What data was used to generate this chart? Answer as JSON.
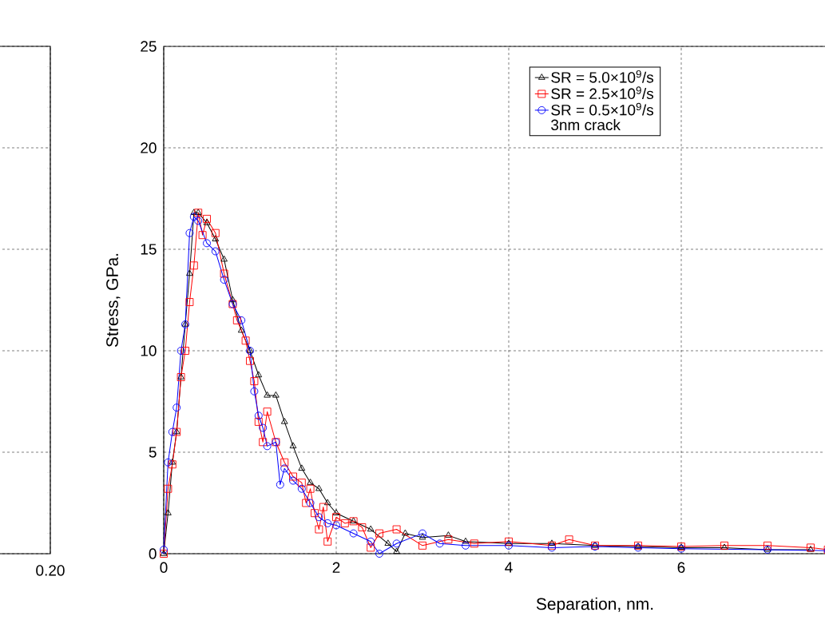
{
  "chart_data": [
    {
      "type": "other",
      "annotations": [
        "0.20"
      ]
    },
    {
      "type": "line",
      "xlabel": "Separation, nm.",
      "ylabel": "Stress, GPa.",
      "legend_title": "3nm crack",
      "xlim": [
        0,
        10
      ],
      "ylim": [
        0,
        25
      ],
      "xticks": [
        0,
        2,
        4,
        6
      ],
      "yticks": [
        0,
        5,
        10,
        15,
        20,
        25
      ],
      "grid": true,
      "legend": "top",
      "line_style": "solid",
      "series": [
        {
          "name": "SR = 5.0×10$^{9}$/s",
          "color": "#000000",
          "marker": "triangle",
          "x": [
            0,
            0.05,
            0.1,
            0.15,
            0.2,
            0.25,
            0.3,
            0.35,
            0.4,
            0.5,
            0.6,
            0.7,
            0.8,
            0.9,
            1.0,
            1.1,
            1.2,
            1.3,
            1.4,
            1.5,
            1.6,
            1.7,
            1.8,
            1.9,
            2.0,
            2.2,
            2.4,
            2.6,
            2.7,
            2.8,
            3.0,
            3.3,
            3.5,
            4.0,
            4.5,
            5.0,
            5.5,
            6.0,
            6.5,
            7.0,
            7.5
          ],
          "values": [
            0,
            2,
            4.5,
            6,
            8.7,
            11.3,
            13.8,
            16.8,
            16.8,
            16.3,
            15.5,
            14.5,
            12.5,
            11,
            10,
            8.8,
            7.8,
            7.8,
            6.5,
            5.3,
            4.2,
            3.5,
            3.2,
            2.5,
            2,
            1.6,
            1.2,
            0.5,
            0.1,
            1,
            0.8,
            0.9,
            0.6,
            0.5,
            0.5,
            0.4,
            0.35,
            0.3,
            0.3,
            0.2,
            0.2
          ]
        },
        {
          "name": "SR = 2.5×10$^{9}$/s",
          "color": "#ff0000",
          "marker": "square",
          "x": [
            0,
            0.05,
            0.1,
            0.15,
            0.2,
            0.25,
            0.3,
            0.35,
            0.4,
            0.45,
            0.5,
            0.6,
            0.7,
            0.8,
            0.85,
            0.95,
            1.0,
            1.05,
            1.1,
            1.15,
            1.2,
            1.3,
            1.4,
            1.5,
            1.6,
            1.65,
            1.7,
            1.75,
            1.8,
            1.85,
            1.9,
            2.0,
            2.1,
            2.2,
            2.3,
            2.4,
            2.5,
            2.7,
            3.0,
            3.3,
            3.6,
            4.0,
            4.5,
            4.7,
            5.0,
            5.5,
            6.0,
            6.5,
            7.0,
            7.5,
            7.7
          ],
          "values": [
            0,
            3.2,
            4.4,
            6,
            8.7,
            10,
            12.4,
            14.2,
            16.8,
            15.7,
            16.5,
            15.8,
            13.8,
            12.3,
            11.5,
            10.5,
            9.5,
            8.5,
            6.5,
            5.5,
            7,
            5.5,
            4.5,
            3.8,
            3.5,
            2.5,
            3.2,
            2,
            1.2,
            2.3,
            0.6,
            1.8,
            1.5,
            1.6,
            1.3,
            0.3,
            1,
            1.2,
            0.4,
            0.7,
            0.5,
            0.6,
            0.4,
            0.7,
            0.4,
            0.4,
            0.35,
            0.4,
            0.4,
            0.3,
            0.2
          ]
        },
        {
          "name": "SR = 0.5×10$^{9}$/s",
          "color": "#0000ff",
          "marker": "circle",
          "x": [
            0,
            0.05,
            0.1,
            0.15,
            0.2,
            0.25,
            0.3,
            0.35,
            0.4,
            0.5,
            0.6,
            0.7,
            0.8,
            0.9,
            1.0,
            1.05,
            1.1,
            1.15,
            1.2,
            1.3,
            1.35,
            1.4,
            1.5,
            1.6,
            1.7,
            1.8,
            1.9,
            2.0,
            2.2,
            2.4,
            2.5,
            2.7,
            3.0,
            3.2,
            3.5,
            4.0,
            4.5,
            5.0,
            5.5,
            6.0,
            7.0,
            7.7
          ],
          "values": [
            0.2,
            4.5,
            6,
            7.2,
            10,
            11.3,
            15.8,
            16.6,
            16.4,
            15.3,
            14.9,
            13.5,
            12.3,
            11.5,
            10,
            8,
            6.8,
            6.2,
            5.3,
            5.5,
            3.4,
            4.2,
            3.6,
            3.2,
            2.5,
            1.8,
            1.5,
            1.4,
            1,
            0.6,
            0,
            0.5,
            1,
            0.5,
            0.4,
            0.4,
            0.3,
            0.35,
            0.3,
            0.25,
            0.2,
            0.15
          ]
        }
      ]
    }
  ]
}
